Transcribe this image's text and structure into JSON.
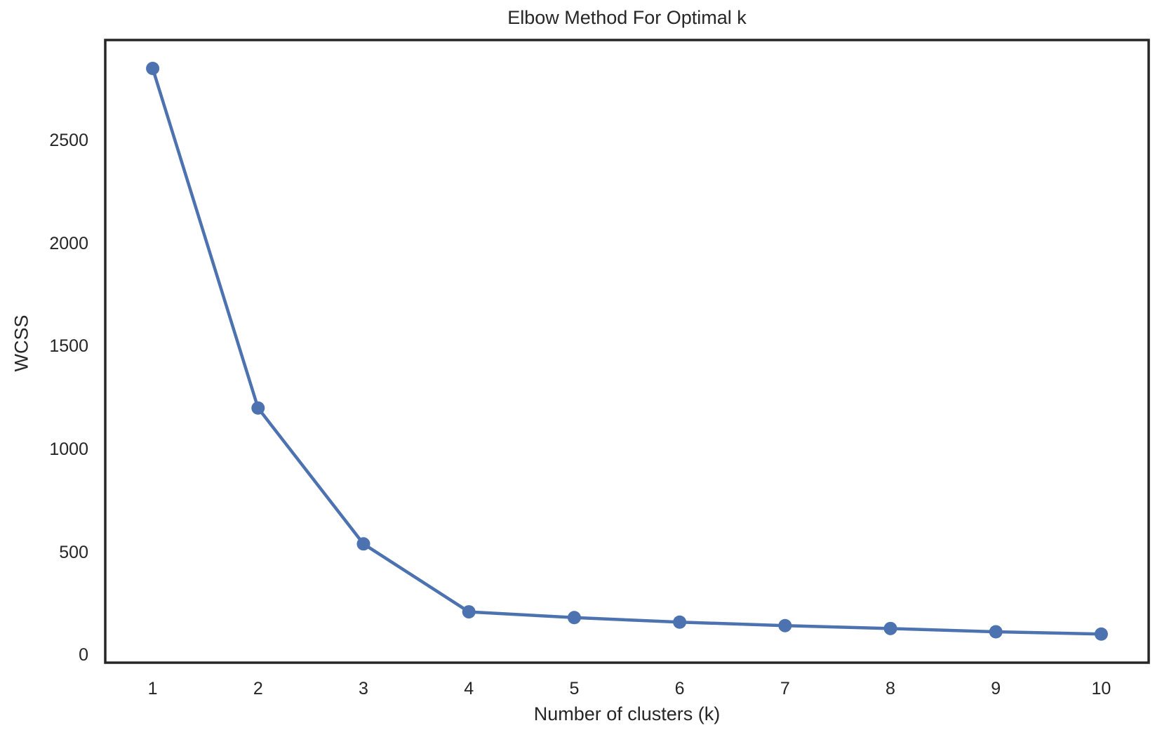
{
  "chart_data": {
    "type": "line",
    "title": "Elbow Method For Optimal k",
    "xlabel": "Number of clusters (k)",
    "ylabel": "WCSS",
    "x": [
      1,
      2,
      3,
      4,
      5,
      6,
      7,
      8,
      9,
      10
    ],
    "series": [
      {
        "name": "WCSS",
        "values": [
          2850,
          1200,
          540,
          210,
          182,
          160,
          143,
          129,
          113,
          102
        ],
        "color": "#4C72B0",
        "marker": "circle"
      }
    ],
    "xticks": [
      "1",
      "2",
      "3",
      "4",
      "5",
      "6",
      "7",
      "8",
      "9",
      "10"
    ],
    "xtick_values": [
      1,
      2,
      3,
      4,
      5,
      6,
      7,
      8,
      9,
      10
    ],
    "yticks": [
      "0",
      "500",
      "1000",
      "1500",
      "2000",
      "2500"
    ],
    "ytick_values": [
      0,
      500,
      1000,
      1500,
      2000,
      2500
    ],
    "xlim": [
      0.55,
      10.45
    ],
    "ylim": [
      -37,
      2988
    ],
    "grid": false,
    "legend": "none"
  },
  "colors": {
    "line": "#4C72B0",
    "marker": "#4C72B0",
    "spine": "#262626",
    "text": "#262626",
    "background": "#ffffff"
  }
}
